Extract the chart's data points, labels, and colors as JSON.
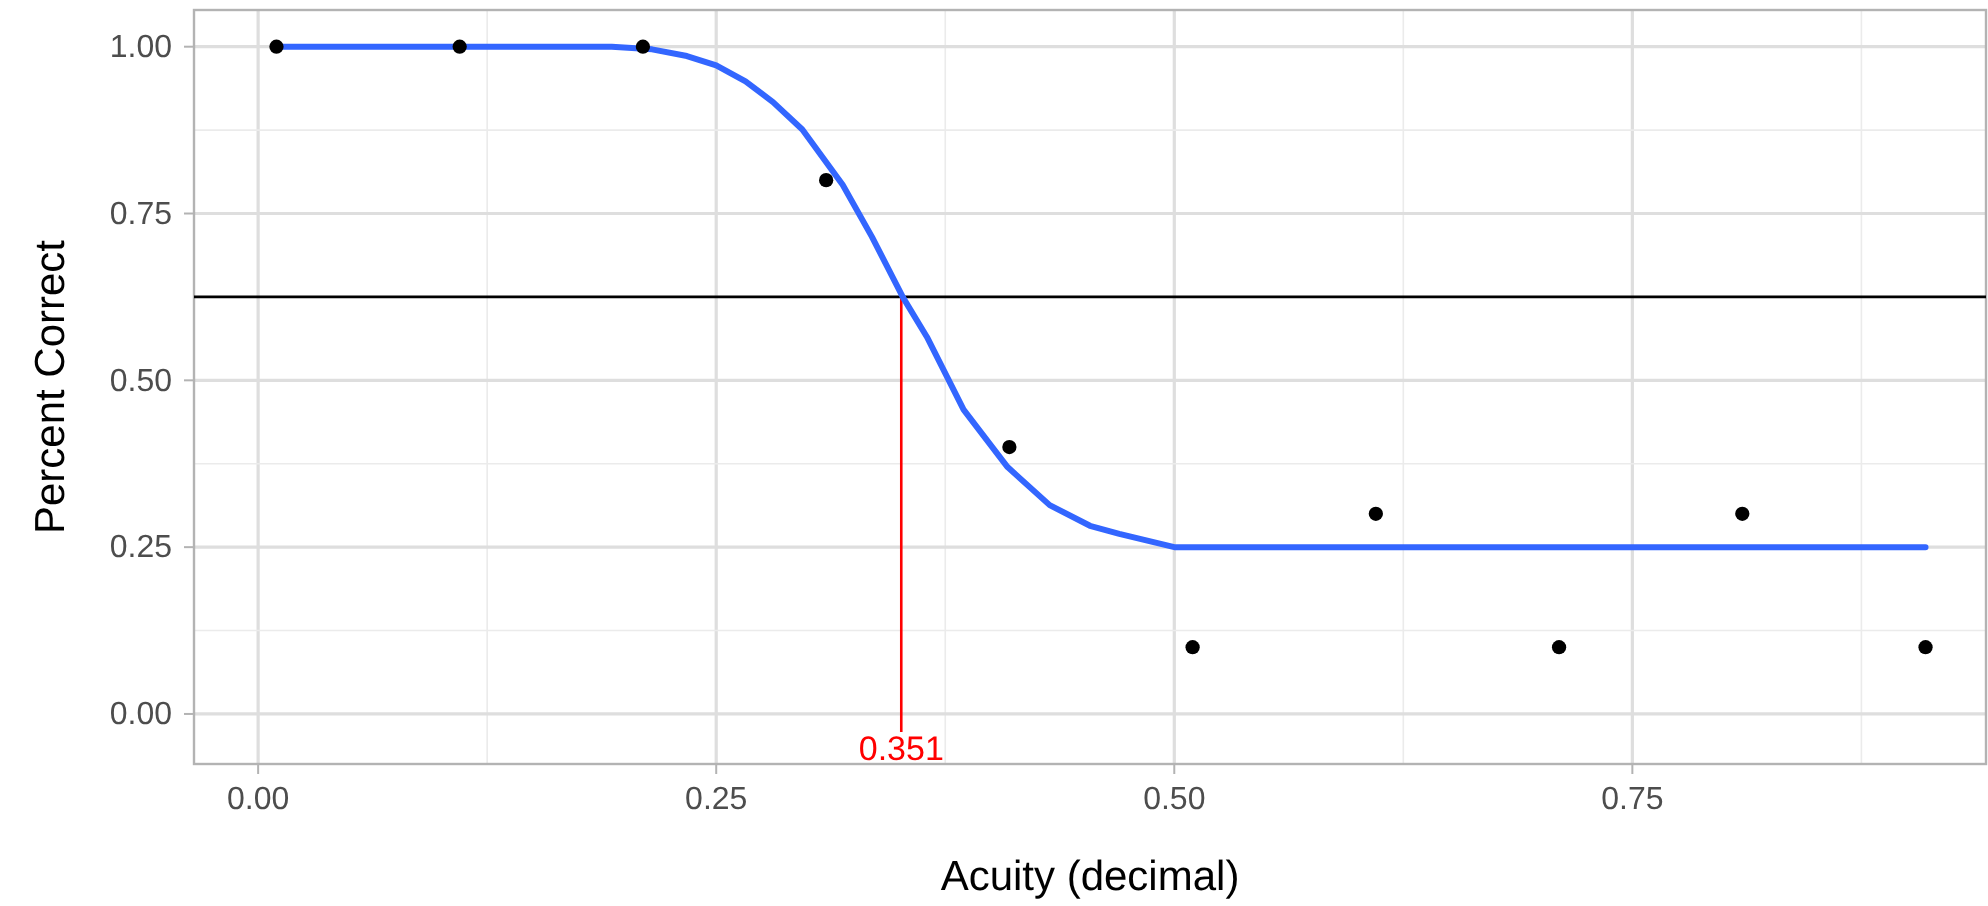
{
  "chart_data": {
    "type": "scatter",
    "xlabel": "Acuity (decimal)",
    "ylabel": "Percent Correct",
    "xlim": [
      -0.035,
      0.943
    ],
    "ylim": [
      -0.075,
      1.055
    ],
    "xticks": [
      {
        "value": 0,
        "label": "0.00"
      },
      {
        "value": 0.25,
        "label": "0.25"
      },
      {
        "value": 0.5,
        "label": "0.50"
      },
      {
        "value": 0.75,
        "label": "0.75"
      }
    ],
    "yticks": [
      {
        "value": 0,
        "label": "0.00"
      },
      {
        "value": 0.25,
        "label": "0.25"
      },
      {
        "value": 0.5,
        "label": "0.50"
      },
      {
        "value": 0.75,
        "label": "0.75"
      },
      {
        "value": 1,
        "label": "1.00"
      }
    ],
    "grid": true,
    "series": [
      {
        "marker": "circle",
        "color": "#000000",
        "x": [
          0.01,
          0.11,
          0.21,
          0.31,
          0.41,
          0.51,
          0.61,
          0.71,
          0.81,
          0.91
        ],
        "values": [
          1,
          1,
          1,
          0.8,
          0.4,
          0.1,
          0.3,
          0.1,
          0.3,
          0.1
        ]
      },
      {
        "type": "line",
        "color": "#3366ff",
        "x": [
          0.01,
          0.193,
          0.215,
          0.234,
          0.25,
          0.266,
          0.281,
          0.297,
          0.319,
          0.335,
          0.352,
          0.365,
          0.385,
          0.409,
          0.432,
          0.454,
          0.47,
          0.5,
          0.91
        ],
        "values": [
          1,
          1,
          0.996,
          0.986,
          0.972,
          0.948,
          0.917,
          0.876,
          0.793,
          0.715,
          0.624,
          0.565,
          0.456,
          0.37,
          0.313,
          0.282,
          0.27,
          0.25,
          0.25
        ]
      }
    ],
    "ref_lines": [
      {
        "axis": "y",
        "value": 0.625,
        "color": "#000000"
      },
      {
        "axis": "x",
        "value": 0.351,
        "label": "0.351",
        "color": "#ff0000"
      }
    ]
  }
}
